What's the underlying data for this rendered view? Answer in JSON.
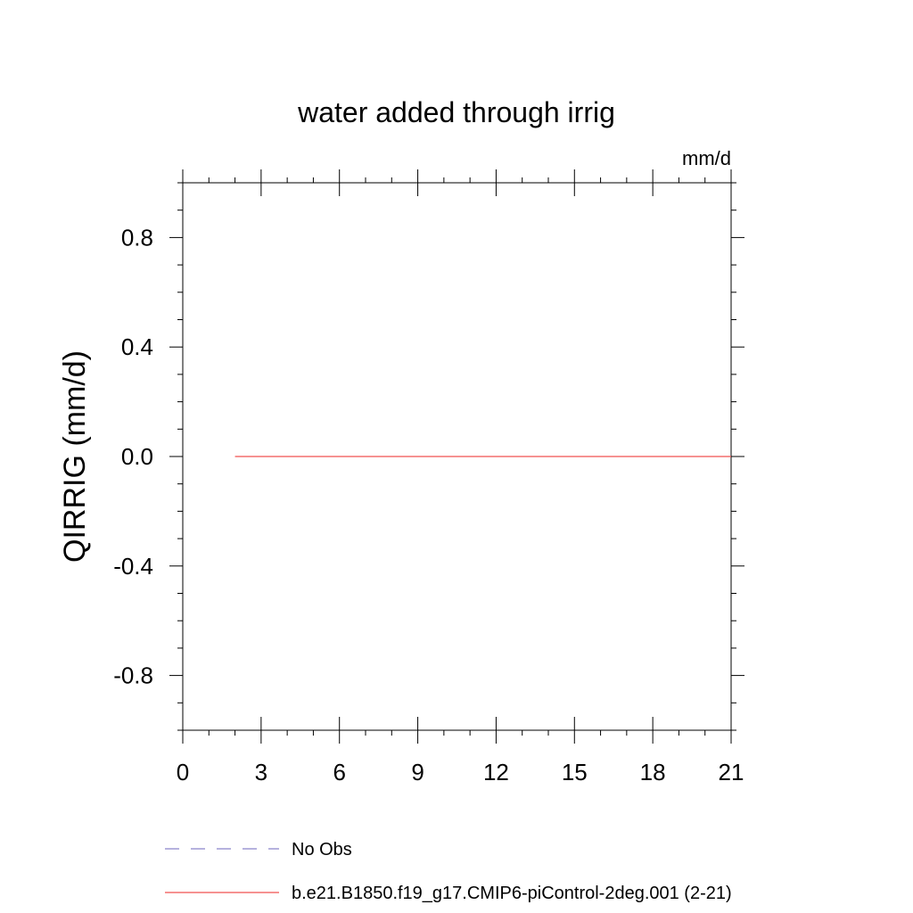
{
  "chart_data": {
    "type": "line",
    "title": "water added through irrig",
    "units_label": "mm/d",
    "ylabel": "QIRRIG  (mm/d)",
    "xlabel": "",
    "xlim": [
      0,
      21
    ],
    "ylim": [
      -1.0,
      1.0
    ],
    "x_ticks": [
      0,
      3,
      6,
      9,
      12,
      15,
      18,
      21
    ],
    "x_tick_labels": [
      "0",
      "3",
      "6",
      "9",
      "12",
      "15",
      "18",
      "21"
    ],
    "x_minor_step": 1,
    "y_ticks": [
      -0.8,
      -0.4,
      0.0,
      0.4,
      0.8
    ],
    "y_tick_labels": [
      "-0.8",
      "-0.4",
      "0.0",
      "0.4",
      "0.8"
    ],
    "y_minor_step": 0.1,
    "grid": false,
    "legend_position": "bottom",
    "series": [
      {
        "name": "No Obs",
        "style": "dashed",
        "color": "#8a83c9",
        "x": [],
        "y": []
      },
      {
        "name": "b.e21.B1850.f19_g17.CMIP6-piControl-2deg.001 (2-21)",
        "style": "solid",
        "color": "#f0504f",
        "x": [
          2,
          21
        ],
        "y": [
          0.0,
          0.0
        ]
      }
    ]
  }
}
